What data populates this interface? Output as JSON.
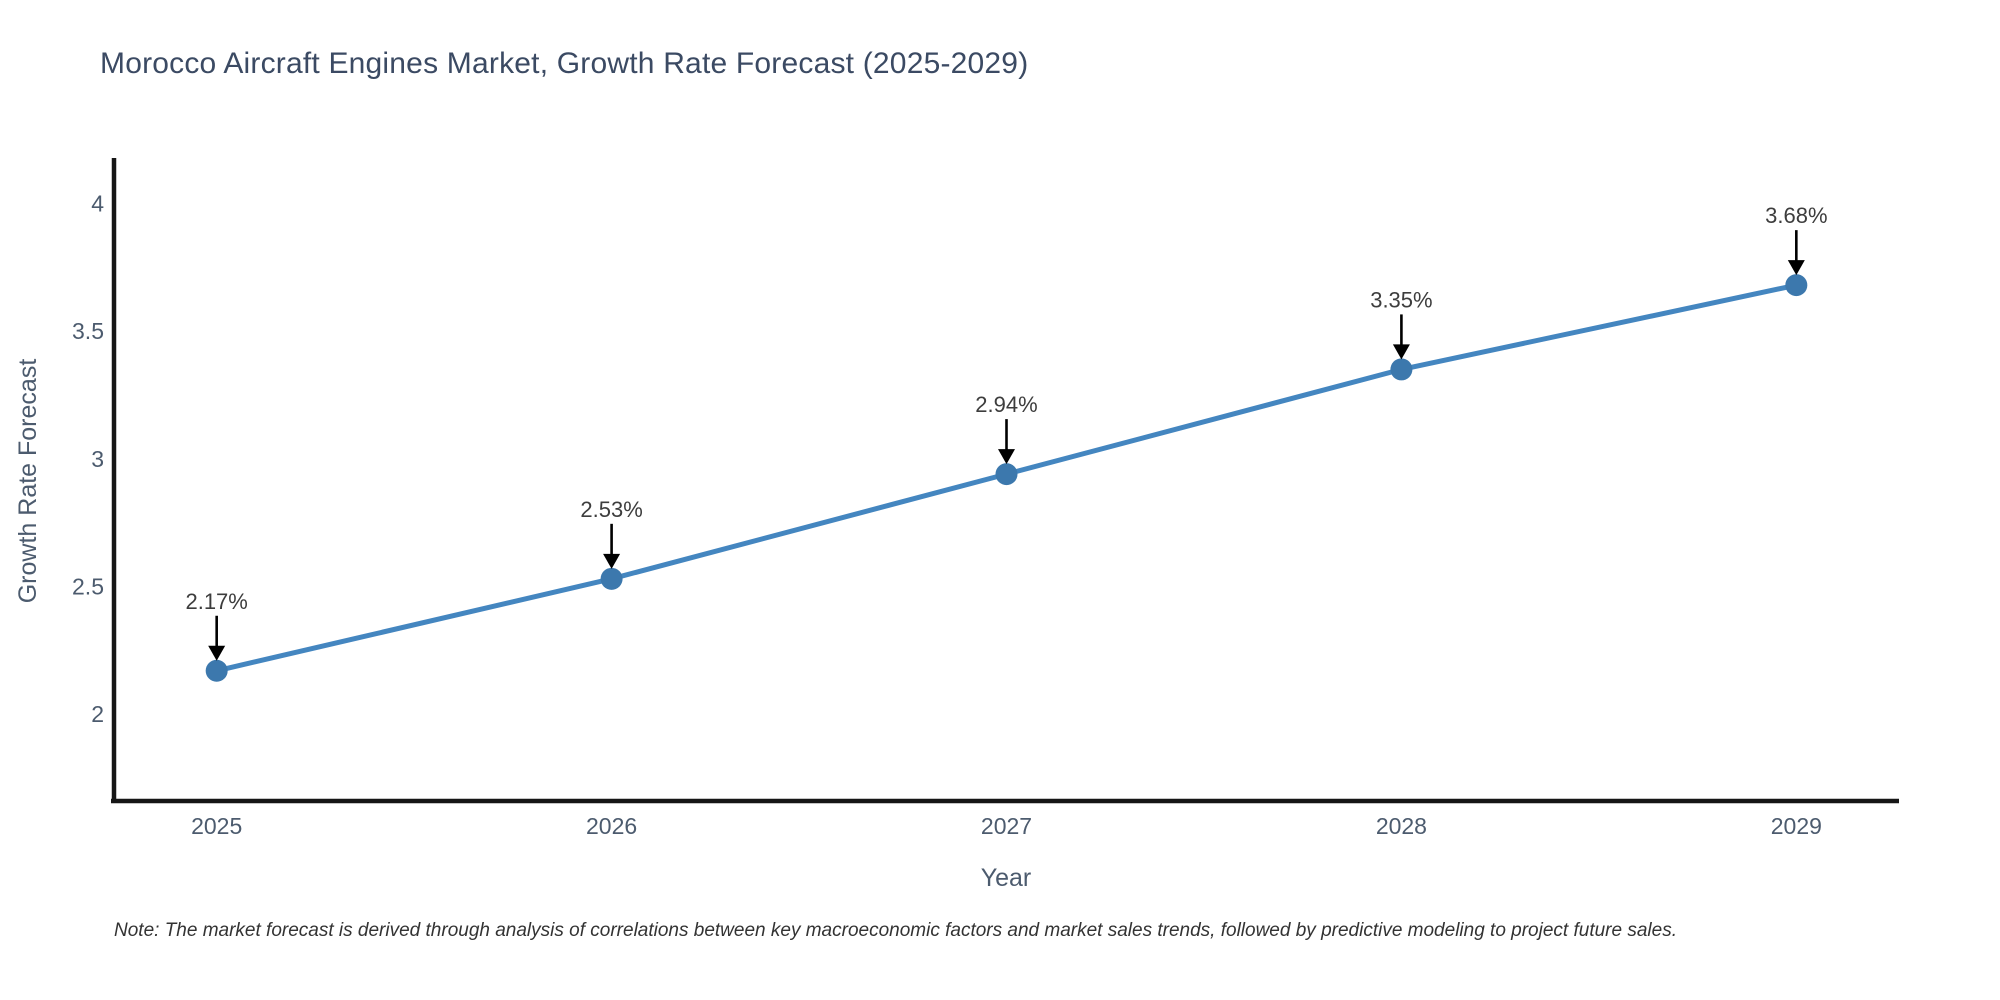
{
  "page": {
    "background": "#ffffff"
  },
  "chart_data": {
    "type": "line",
    "title": "Morocco Aircraft Engines Market, Growth Rate Forecast (2025-2029)",
    "xlabel": "Year",
    "ylabel": "Growth Rate Forecast",
    "x": [
      2025,
      2026,
      2027,
      2028,
      2029
    ],
    "values": [
      2.17,
      2.53,
      2.94,
      3.35,
      3.68
    ],
    "point_labels": [
      "2.17%",
      "2.53%",
      "2.94%",
      "3.35%",
      "3.68%"
    ],
    "x_tick_labels": [
      "2025",
      "2026",
      "2027",
      "2028",
      "2029"
    ],
    "y_ticks": [
      2,
      2.5,
      3,
      3.5,
      4
    ],
    "y_tick_labels": [
      "2",
      "2.5",
      "3",
      "3.5",
      "4"
    ],
    "x_range": [
      2024.74,
      2029.26
    ],
    "y_range": [
      1.66,
      4.17
    ],
    "grid": false,
    "legend": "none",
    "line_color": "#4486c0",
    "marker_color": "#3c78ad",
    "axis_line_color": "#161616",
    "annotation_color": "#3d3d3d",
    "arrow_color": "#000000",
    "tick_label_color": "#4c5b6e",
    "axis_title_color": "#4c5b6e",
    "title_color": "#3b4a63"
  },
  "note": {
    "text": "Note: The market forecast is derived through analysis of correlations between key macroeconomic factors and market sales trends, followed by predictive modeling to project future sales."
  }
}
